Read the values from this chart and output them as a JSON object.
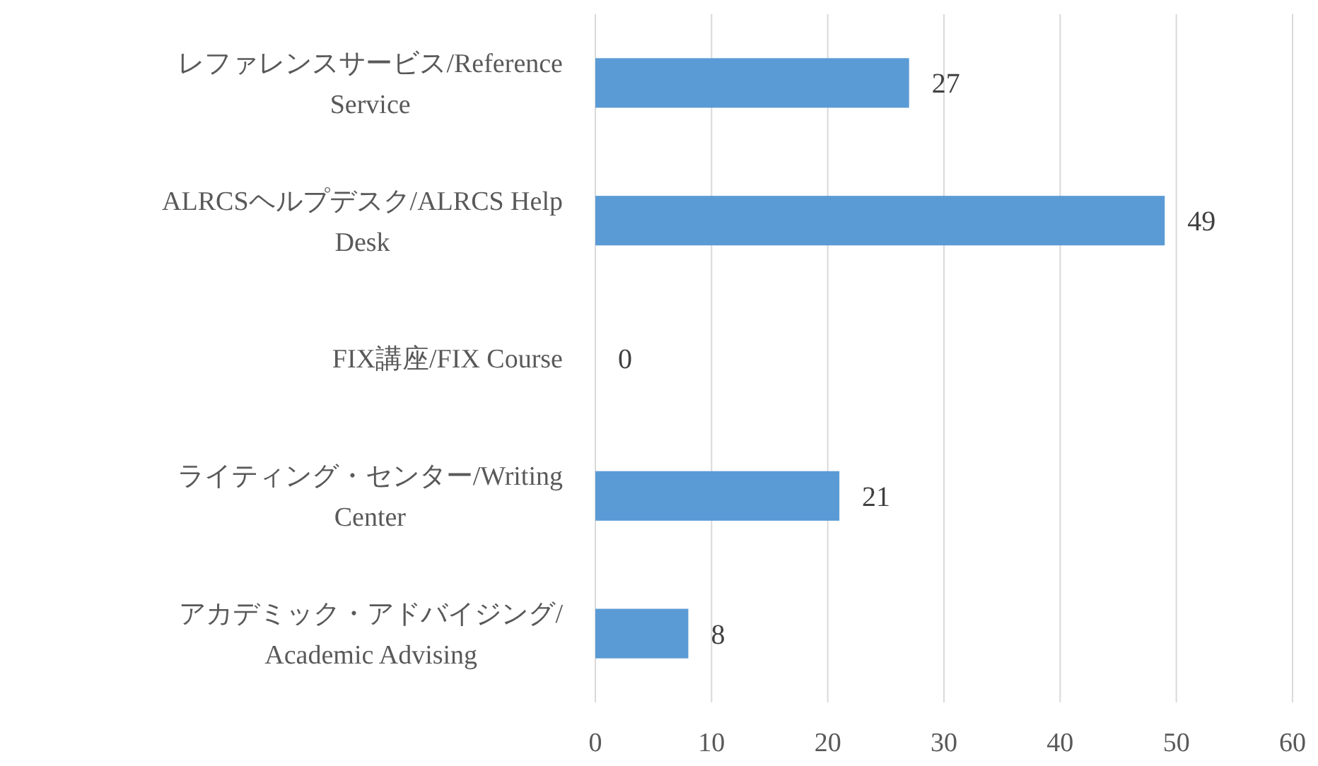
{
  "chart_data": {
    "type": "bar",
    "orientation": "horizontal",
    "categories": [
      "レファレンスサービス/Reference Service",
      "ALRCSヘルプデスク/ALRCS Help Desk",
      "FIX講座/FIX Course",
      "ライティング・センター/Writing Center",
      "アカデミック・アドバイジング/Academic Advising"
    ],
    "values": [
      27,
      49,
      0,
      21,
      8
    ],
    "color": "#5b9bd5",
    "xlim": [
      0,
      60
    ],
    "xticks": [
      0,
      10,
      20,
      30,
      40,
      50,
      60
    ],
    "grid": "x",
    "data_labels": true
  }
}
